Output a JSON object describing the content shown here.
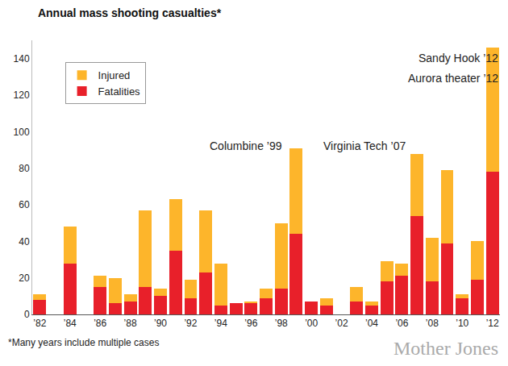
{
  "chart_data": {
    "type": "bar",
    "title": "Annual mass shooting casualties*",
    "footnote": "*Many years include multiple cases",
    "source": "Mother Jones",
    "annotations": [
      "Columbine ’99",
      "Virginia Tech ’07",
      "Sandy Hook ’12",
      "Aurora theater ’12"
    ],
    "categories": [
      "’82",
      null,
      "’84",
      null,
      "’86",
      null,
      "’88",
      null,
      "’90",
      null,
      "’92",
      null,
      "’94",
      null,
      "’96",
      null,
      "’98",
      null,
      "’00",
      null,
      "’02",
      null,
      "’04",
      null,
      "’06",
      null,
      "’08",
      null,
      "’10",
      null,
      "’12"
    ],
    "series": [
      {
        "name": "Fatalities",
        "color": "#e8202a",
        "values": [
          8,
          0,
          28,
          0,
          15,
          6,
          7,
          15,
          10,
          35,
          9,
          23,
          5,
          6,
          6,
          9,
          14,
          44,
          7,
          5,
          0,
          7,
          5,
          18,
          21,
          54,
          18,
          39,
          9,
          19,
          78
        ]
      },
      {
        "name": "Injured",
        "color": "#fdb52b",
        "values": [
          3,
          0,
          20,
          0,
          6,
          14,
          4,
          42,
          4,
          28,
          10,
          34,
          23,
          0,
          1,
          5,
          36,
          47,
          0,
          4,
          0,
          8,
          2,
          11,
          7,
          34,
          24,
          40,
          2,
          21,
          68
        ]
      }
    ],
    "stacked": true,
    "ylim": [
      0,
      150
    ],
    "yticks": [
      0,
      20,
      40,
      60,
      80,
      100,
      120,
      140
    ],
    "grid": false,
    "legend": "top-left",
    "data_labels": false
  }
}
